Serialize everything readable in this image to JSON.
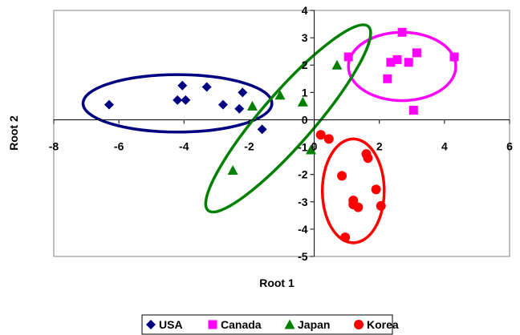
{
  "chart_data": {
    "type": "scatter",
    "title": "",
    "xlabel": "Root 1",
    "ylabel": "Root 2",
    "xlim": [
      -8,
      6
    ],
    "ylim": [
      -5,
      4
    ],
    "xticks": [
      -8,
      -6,
      -4,
      -2,
      0,
      2,
      4,
      6
    ],
    "yticks": [
      -5,
      -4,
      -3,
      -2,
      -1,
      0,
      1,
      2,
      3,
      4
    ],
    "grid": false,
    "legend_position": "bottom",
    "series": [
      {
        "name": "USA",
        "marker": "diamond",
        "color": "#000080",
        "points": [
          [
            -6.3,
            0.55
          ],
          [
            -4.2,
            0.72
          ],
          [
            -4.05,
            1.25
          ],
          [
            -3.95,
            0.72
          ],
          [
            -3.3,
            1.2
          ],
          [
            -2.8,
            0.55
          ],
          [
            -2.2,
            1.0
          ],
          [
            -2.3,
            0.4
          ],
          [
            -1.6,
            -0.35
          ]
        ]
      },
      {
        "name": "Canada",
        "marker": "square",
        "color": "#FF00FF",
        "points": [
          [
            1.05,
            2.3
          ],
          [
            2.25,
            1.5
          ],
          [
            2.35,
            2.1
          ],
          [
            2.55,
            2.2
          ],
          [
            2.7,
            3.2
          ],
          [
            2.9,
            2.1
          ],
          [
            3.05,
            0.35
          ],
          [
            3.15,
            2.45
          ],
          [
            4.3,
            2.3
          ]
        ]
      },
      {
        "name": "Japan",
        "marker": "triangle",
        "color": "#008000",
        "points": [
          [
            0.7,
            2.0
          ],
          [
            -1.05,
            0.9
          ],
          [
            -0.35,
            0.65
          ],
          [
            -1.9,
            0.5
          ],
          [
            -2.5,
            -1.85
          ],
          [
            -0.1,
            -1.1
          ]
        ]
      },
      {
        "name": "Korea",
        "marker": "circle",
        "color": "#FF0000",
        "points": [
          [
            0.2,
            -0.55
          ],
          [
            0.45,
            -0.7
          ],
          [
            0.85,
            -2.05
          ],
          [
            1.2,
            -2.95
          ],
          [
            1.2,
            -3.1
          ],
          [
            1.35,
            -3.2
          ],
          [
            1.6,
            -1.25
          ],
          [
            1.65,
            -1.4
          ],
          [
            1.9,
            -2.55
          ],
          [
            2.05,
            -3.15
          ],
          [
            0.95,
            -4.3
          ]
        ]
      }
    ],
    "ellipses": [
      {
        "name": "USA",
        "color": "#000080",
        "cx": -4.2,
        "cy": 0.6,
        "rx": 2.9,
        "ry": 1.05,
        "angle": 0
      },
      {
        "name": "Canada",
        "color": "#FF00FF",
        "cx": 2.7,
        "cy": 1.95,
        "rx": 1.65,
        "ry": 1.25,
        "angle": 0
      },
      {
        "name": "Japan",
        "color": "#008000",
        "cx": -0.8,
        "cy": 0.05,
        "rx": 3.75,
        "ry": 0.95,
        "angle": 49
      },
      {
        "name": "Korea",
        "color": "#FF0000",
        "cx": 1.2,
        "cy": -2.6,
        "rx": 0.95,
        "ry": 1.9,
        "angle": 0
      }
    ]
  }
}
